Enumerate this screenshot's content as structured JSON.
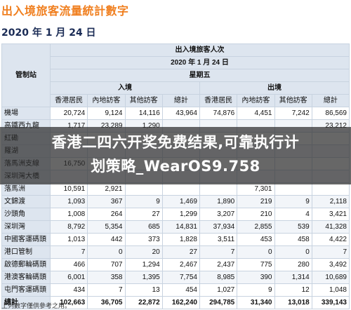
{
  "header": {
    "title": "出入境旅客流量統計數字",
    "date": "2020 年 1 月 24 日"
  },
  "table": {
    "corner_label": "管制站",
    "caption": "出入境旅客人次",
    "date": "2020 年 1 月 24 日",
    "weekday": "星期五",
    "arrival_label": "入境",
    "departure_label": "出境",
    "sub_headers": [
      "香港居民",
      "內地訪客",
      "其他訪客",
      "總計",
      "香港居民",
      "內地訪客",
      "其他訪客",
      "總計"
    ],
    "rows": [
      {
        "port": "機場",
        "values": [
          "20,724",
          "9,124",
          "14,116",
          "43,964",
          "74,876",
          "4,451",
          "7,242",
          "86,569"
        ]
      },
      {
        "port": "高鐵西九龍",
        "values": [
          "1,717",
          "23,289",
          "1,290",
          "",
          "",
          "",
          "",
          "23,212"
        ]
      },
      {
        "port": "紅磡",
        "values": [
          "",
          "",
          "",
          "",
          "",
          "",
          "",
          ""
        ]
      },
      {
        "port": "羅湖",
        "values": [
          "",
          "",
          "",
          "",
          "",
          "",
          "",
          ""
        ]
      },
      {
        "port": "落馬洲支線",
        "values": [
          "16,750",
          "",
          "",
          "",
          "",
          "",
          "",
          ""
        ]
      },
      {
        "port": "深圳灣大橋",
        "values": [
          "",
          "",
          "",
          "",
          "",
          "",
          "",
          ""
        ]
      },
      {
        "port": "落馬洲",
        "values": [
          "10,591",
          "2,921",
          "",
          "",
          "",
          "7,301",
          "",
          ""
        ]
      },
      {
        "port": "文錦渡",
        "values": [
          "1,093",
          "367",
          "9",
          "1,469",
          "1,890",
          "219",
          "9",
          "2,118"
        ]
      },
      {
        "port": "沙頭角",
        "values": [
          "1,008",
          "264",
          "27",
          "1,299",
          "3,207",
          "210",
          "4",
          "3,421"
        ]
      },
      {
        "port": "深圳灣",
        "values": [
          "8,792",
          "5,354",
          "685",
          "14,831",
          "37,934",
          "2,855",
          "539",
          "41,328"
        ]
      },
      {
        "port": "中國客運碼頭",
        "values": [
          "1,013",
          "442",
          "373",
          "1,828",
          "3,511",
          "453",
          "458",
          "4,422"
        ]
      },
      {
        "port": "港口管制",
        "values": [
          "7",
          "0",
          "20",
          "27",
          "7",
          "0",
          "0",
          "7"
        ]
      },
      {
        "port": "啟德郵輪碼頭",
        "values": [
          "466",
          "707",
          "1,294",
          "2,467",
          "2,437",
          "775",
          "280",
          "3,492"
        ]
      },
      {
        "port": "港澳客輪碼頭",
        "values": [
          "6,001",
          "358",
          "1,395",
          "7,754",
          "8,985",
          "390",
          "1,314",
          "10,689"
        ]
      },
      {
        "port": "屯門客運碼頭",
        "values": [
          "434",
          "7",
          "13",
          "454",
          "1,027",
          "9",
          "12",
          "1,048"
        ]
      }
    ],
    "total": {
      "label": "總計",
      "values": [
        "102,663",
        "36,705",
        "22,872",
        "162,240",
        "294,785",
        "31,340",
        "13,018",
        "339,143"
      ]
    }
  },
  "footnote": "上列數字僅供參考之用。",
  "overlay": {
    "line1": "香港二四六开奖免费结果,可靠执行计",
    "line2": "划策略_WearOS9.758"
  }
}
